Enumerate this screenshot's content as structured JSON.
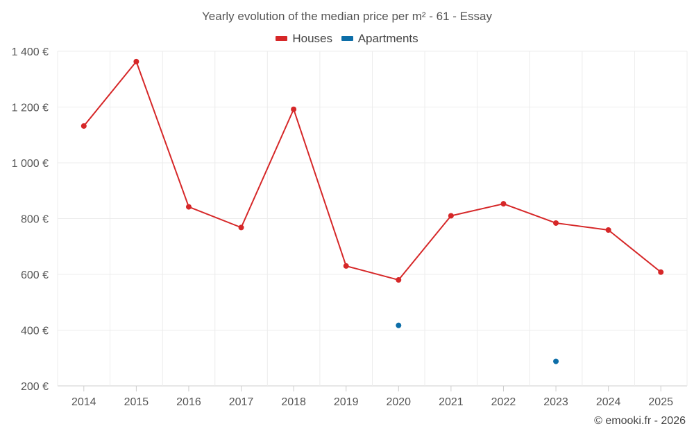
{
  "chart_data": {
    "type": "line",
    "title": "Yearly evolution of the median price per m² - 61 - Essay",
    "categories": [
      "2014",
      "2015",
      "2016",
      "2017",
      "2018",
      "2019",
      "2020",
      "2021",
      "2022",
      "2023",
      "2024",
      "2025"
    ],
    "series": [
      {
        "name": "Houses",
        "color": "#d62728",
        "values": [
          1132,
          1363,
          842,
          768,
          1192,
          630,
          580,
          810,
          853,
          784,
          759,
          608
        ]
      },
      {
        "name": "Apartments",
        "color": "#0d6ea8",
        "values": [
          null,
          null,
          null,
          null,
          null,
          null,
          417,
          null,
          null,
          288,
          null,
          null
        ]
      }
    ],
    "ylim": [
      200,
      1400
    ],
    "yticks": [
      200,
      400,
      600,
      800,
      1000,
      1200,
      1400
    ],
    "ytick_labels": [
      "200 €",
      "400 €",
      "600 €",
      "800 €",
      "1 000 €",
      "1 200 €",
      "1 400 €"
    ],
    "xlabel": "",
    "ylabel": "",
    "grid": true,
    "legend_position": "top-center"
  },
  "credit": "© emooki.fr - 2026"
}
